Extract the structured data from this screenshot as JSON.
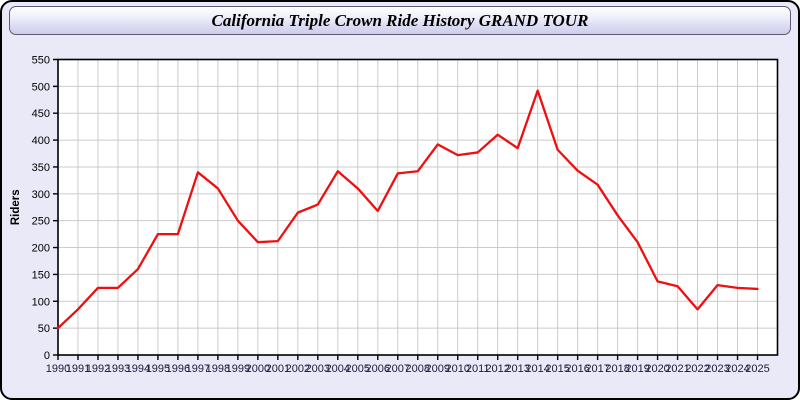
{
  "window": {
    "title": "California Triple Crown Ride History GRAND TOUR"
  },
  "colors": {
    "frame_background": "#e9e9f8",
    "plot_background": "#ffffff",
    "grid": "#cbcbcb",
    "plot_border": "#000000",
    "line": "#ee1010",
    "y_tick_label": "#000000",
    "x_tick_label": "#1c1c3a",
    "title_text": "#000000"
  },
  "chart_data": {
    "type": "line",
    "title": "California Triple Crown Ride History GRAND TOUR",
    "xlabel": "",
    "ylabel": "Riders",
    "x": [
      1990,
      1991,
      1992,
      1993,
      1994,
      1995,
      1996,
      1997,
      1998,
      1999,
      2000,
      2001,
      2002,
      2003,
      2004,
      2005,
      2006,
      2007,
      2008,
      2009,
      2010,
      2011,
      2012,
      2013,
      2014,
      2015,
      2016,
      2017,
      2018,
      2019,
      2020,
      2021,
      2022,
      2023,
      2024,
      2025
    ],
    "series": [
      {
        "name": "Riders",
        "color": "#ee1010",
        "values": [
          50,
          85,
          125,
          125,
          160,
          225,
          225,
          340,
          310,
          250,
          210,
          212,
          265,
          280,
          342,
          310,
          268,
          338,
          342,
          392,
          372,
          377,
          410,
          385,
          492,
          382,
          343,
          317,
          260,
          210,
          137,
          128,
          85,
          130,
          125,
          123
        ]
      }
    ],
    "ylim": [
      0,
      550
    ],
    "ytick_step": 50,
    "yticks": [
      0,
      50,
      100,
      150,
      200,
      250,
      300,
      350,
      400,
      450,
      500,
      550
    ],
    "grid": true,
    "legend": false
  }
}
